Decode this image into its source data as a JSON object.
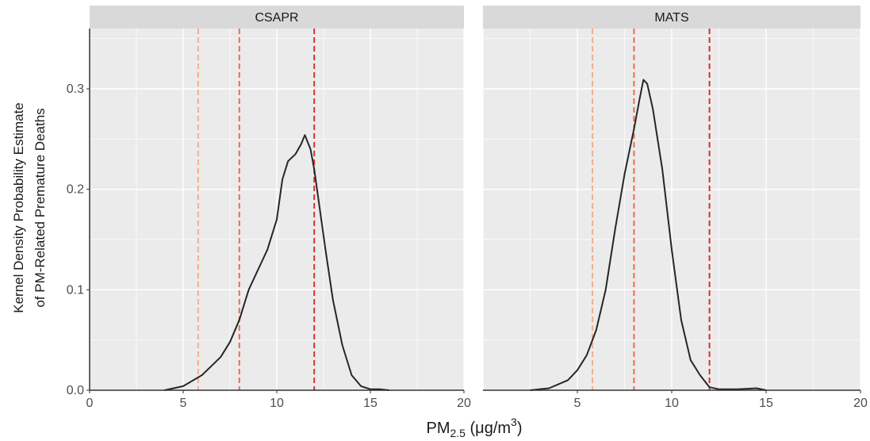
{
  "chart_data": {
    "type": "line",
    "ylabel_line1": "Kernel Density Probability Estimate",
    "ylabel_line2": "of PM-Related Premature Deaths",
    "xlabel": {
      "main": "PM",
      "sub": "2.5",
      "unit_pre": " (μg/m",
      "sup": "3",
      "unit_post": ")"
    },
    "xlim": [
      0,
      20
    ],
    "ylim": [
      0,
      0.36
    ],
    "x_ticks": [
      0,
      5,
      10,
      15,
      20
    ],
    "x_tick_labels_left": [
      "0",
      "5",
      "10",
      "15",
      "20"
    ],
    "x_tick_labels_right": [
      "",
      "5",
      "10",
      "15",
      "20"
    ],
    "y_ticks": [
      0.0,
      0.1,
      0.2,
      0.3
    ],
    "y_tick_labels": [
      "0.0",
      "0.1",
      "0.2",
      "0.3"
    ],
    "grid": true,
    "colors": {
      "panel_bg": "#ebebeb",
      "strip_bg": "#d9d9d9",
      "grid": "#ffffff",
      "curve": "#262626"
    },
    "reference_lines": [
      {
        "x": 5.8,
        "color": "#f2b08a"
      },
      {
        "x": 8,
        "color": "#ef6a4e"
      },
      {
        "x": 12,
        "color": "#d7302c"
      }
    ],
    "panels": [
      {
        "name": "CSAPR",
        "x": [
          4.0,
          5.0,
          6.0,
          7.0,
          7.5,
          8.0,
          8.5,
          9.0,
          9.5,
          10.0,
          10.3,
          10.6,
          11.0,
          11.3,
          11.5,
          11.8,
          12.0,
          12.3,
          12.6,
          13.0,
          13.5,
          14.0,
          14.5,
          15.0,
          15.5,
          16.0
        ],
        "y": [
          0.0,
          0.004,
          0.015,
          0.033,
          0.048,
          0.07,
          0.1,
          0.12,
          0.14,
          0.17,
          0.21,
          0.228,
          0.235,
          0.245,
          0.254,
          0.24,
          0.22,
          0.18,
          0.14,
          0.09,
          0.045,
          0.015,
          0.004,
          0.001,
          0.001,
          0.0
        ]
      },
      {
        "name": "MATS",
        "x": [
          2.5,
          3.5,
          4.5,
          5.0,
          5.5,
          6.0,
          6.5,
          7.0,
          7.5,
          8.0,
          8.3,
          8.5,
          8.7,
          9.0,
          9.5,
          10.0,
          10.5,
          11.0,
          11.5,
          12.0,
          12.5,
          13.5,
          14.5,
          15.0
        ],
        "y": [
          0.0,
          0.002,
          0.01,
          0.02,
          0.035,
          0.06,
          0.1,
          0.16,
          0.215,
          0.26,
          0.29,
          0.309,
          0.305,
          0.28,
          0.22,
          0.14,
          0.07,
          0.03,
          0.015,
          0.003,
          0.001,
          0.001,
          0.002,
          0.0
        ]
      }
    ]
  }
}
